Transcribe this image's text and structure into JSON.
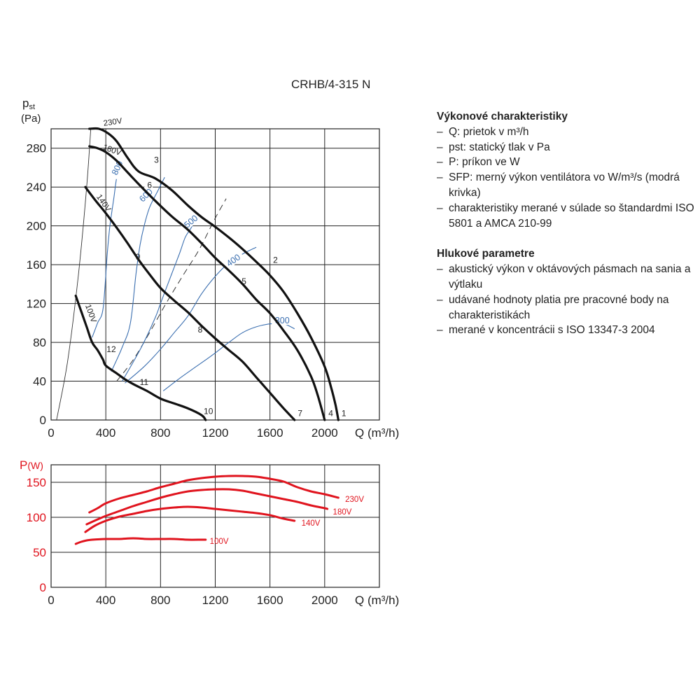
{
  "title": "CRHB/4-315 N",
  "notes": {
    "perf_heading": "Výkonové charakteristiky",
    "perf_items": [
      "Q: prietok v m³/h",
      "pst: statický tlak v Pa",
      "P: príkon ve W",
      "SFP: merný výkon ventilátora vo W/m³/s (modrá krivka)",
      "charakteristiky merané v súlade so štan­dardmi ISO 5801 a AMCA 210-99"
    ],
    "noise_heading": "Hlukové parametre",
    "noise_items": [
      "akustický výkon v oktávových pásmach na sania a výtlaku",
      "udávané hodnoty platia pre pracovné body na charakteristikách",
      "merané v koncentrácii s ISO 13347-3 2004"
    ]
  },
  "colors": {
    "pressure": "#111111",
    "sfp": "#3b6fb0",
    "power": "#e0141e",
    "grid": "#222222"
  },
  "chart_data": [
    {
      "type": "line",
      "ylabel": "pst",
      "yunit": "(Pa)",
      "xlabel": "Q (m³/h)",
      "xlim": [
        0,
        2400
      ],
      "ylim": [
        0,
        300
      ],
      "xticks": [
        0,
        400,
        800,
        1200,
        1600,
        2000
      ],
      "yticks": [
        0,
        40,
        80,
        120,
        160,
        200,
        240,
        280
      ],
      "grid": true,
      "series": [
        {
          "name": "230V",
          "points": [
            [
              280,
              300
            ],
            [
              350,
              300
            ],
            [
              420,
              295
            ],
            [
              480,
              287
            ],
            [
              560,
              270
            ],
            [
              640,
              256
            ],
            [
              760,
              249
            ],
            [
              880,
              237
            ],
            [
              1000,
              221
            ],
            [
              1100,
              209
            ],
            [
              1200,
              199
            ],
            [
              1300,
              188
            ],
            [
              1400,
              176
            ],
            [
              1500,
              163
            ],
            [
              1600,
              149
            ],
            [
              1700,
              132
            ],
            [
              1800,
              110
            ],
            [
              1900,
              85
            ],
            [
              2000,
              55
            ],
            [
              2050,
              32
            ],
            [
              2080,
              15
            ],
            [
              2100,
              0
            ]
          ]
        },
        {
          "name": "180V",
          "points": [
            [
              280,
              282
            ],
            [
              340,
              280
            ],
            [
              400,
              276
            ],
            [
              480,
              267
            ],
            [
              560,
              255
            ],
            [
              640,
              243
            ],
            [
              760,
              226
            ],
            [
              880,
              210
            ],
            [
              1000,
              196
            ],
            [
              1100,
              182
            ],
            [
              1200,
              167
            ],
            [
              1300,
              154
            ],
            [
              1400,
              140
            ],
            [
              1500,
              124
            ],
            [
              1600,
              110
            ],
            [
              1700,
              92
            ],
            [
              1800,
              72
            ],
            [
              1900,
              45
            ],
            [
              1950,
              25
            ],
            [
              2000,
              0
            ]
          ]
        },
        {
          "name": "140V",
          "points": [
            [
              250,
              240
            ],
            [
              320,
              227
            ],
            [
              400,
              213
            ],
            [
              480,
              198
            ],
            [
              560,
              182
            ],
            [
              640,
              165
            ],
            [
              720,
              150
            ],
            [
              800,
              136
            ],
            [
              900,
              123
            ],
            [
              1000,
              111
            ],
            [
              1100,
              97
            ],
            [
              1200,
              84
            ],
            [
              1300,
              72
            ],
            [
              1400,
              60
            ],
            [
              1500,
              44
            ],
            [
              1600,
              28
            ],
            [
              1700,
              12
            ],
            [
              1780,
              0
            ]
          ]
        },
        {
          "name": "100V",
          "points": [
            [
              180,
              128
            ],
            [
              220,
              112
            ],
            [
              260,
              96
            ],
            [
              300,
              80
            ],
            [
              340,
              72
            ],
            [
              380,
              62
            ],
            [
              400,
              56
            ],
            [
              480,
              48
            ],
            [
              540,
              42
            ],
            [
              600,
              37
            ],
            [
              700,
              30
            ],
            [
              800,
              22
            ],
            [
              900,
              17
            ],
            [
              1000,
              12
            ],
            [
              1100,
              5
            ],
            [
              1130,
              0
            ]
          ]
        }
      ],
      "dashed_line": [
        [
          480,
          40
        ],
        [
          600,
          62
        ],
        [
          720,
          90
        ],
        [
          840,
          120
        ],
        [
          960,
          148
        ],
        [
          1080,
          175
        ],
        [
          1200,
          208
        ],
        [
          1280,
          228
        ]
      ],
      "system_curve": [
        [
          40,
          0
        ],
        [
          120,
          60
        ],
        [
          200,
          150
        ],
        [
          260,
          240
        ],
        [
          290,
          300
        ]
      ],
      "sfp_curves": [
        {
          "name": "800",
          "points": [
            [
              300,
              85
            ],
            [
              340,
              100
            ],
            [
              380,
              115
            ],
            [
              410,
              170
            ],
            [
              430,
              200
            ],
            [
              460,
              230
            ],
            [
              480,
              250
            ],
            [
              510,
              263
            ],
            [
              540,
              268
            ]
          ]
        },
        {
          "name": "600",
          "points": [
            [
              440,
              50
            ],
            [
              520,
              75
            ],
            [
              580,
              100
            ],
            [
              620,
              150
            ],
            [
              650,
              180
            ],
            [
              680,
              200
            ],
            [
              720,
              219
            ],
            [
              780,
              236
            ],
            [
              830,
              250
            ]
          ]
        },
        {
          "name": "500",
          "points": [
            [
              520,
              40
            ],
            [
              660,
              75
            ],
            [
              760,
              105
            ],
            [
              800,
              120
            ],
            [
              880,
              150
            ],
            [
              940,
              172
            ],
            [
              980,
              188
            ],
            [
              1020,
              197
            ],
            [
              1060,
              207
            ]
          ]
        },
        {
          "name": "400",
          "points": [
            [
              540,
              38
            ],
            [
              680,
              55
            ],
            [
              800,
              73
            ],
            [
              900,
              90
            ],
            [
              1000,
              107
            ],
            [
              1100,
              130
            ],
            [
              1200,
              148
            ],
            [
              1300,
              162
            ],
            [
              1400,
              171
            ],
            [
              1500,
              178
            ]
          ]
        },
        {
          "name": "300",
          "points": [
            [
              820,
              30
            ],
            [
              940,
              43
            ],
            [
              1060,
              55
            ],
            [
              1180,
              67
            ],
            [
              1300,
              80
            ],
            [
              1400,
              90
            ],
            [
              1500,
              96
            ],
            [
              1600,
              99
            ],
            [
              1700,
              99
            ],
            [
              1780,
              94
            ]
          ]
        }
      ],
      "point_labels": [
        {
          "text": "1",
          "x": 2140,
          "y": 4
        },
        {
          "text": "2",
          "x": 1640,
          "y": 162
        },
        {
          "text": "3",
          "x": 770,
          "y": 265
        },
        {
          "text": "4",
          "x": 2045,
          "y": 4
        },
        {
          "text": "5",
          "x": 1410,
          "y": 140
        },
        {
          "text": "6",
          "x": 720,
          "y": 239
        },
        {
          "text": "7",
          "x": 1820,
          "y": 4
        },
        {
          "text": "8",
          "x": 1090,
          "y": 90
        },
        {
          "text": "9",
          "x": 635,
          "y": 165
        },
        {
          "text": "10",
          "x": 1150,
          "y": 6
        },
        {
          "text": "11",
          "x": 680,
          "y": 36
        },
        {
          "text": "12",
          "x": 440,
          "y": 70
        }
      ],
      "voltage_labels": [
        {
          "text": "230V",
          "x": 385,
          "y": 303,
          "angle": -8
        },
        {
          "text": "180V",
          "x": 375,
          "y": 279,
          "angle": 20
        },
        {
          "text": "140V",
          "x": 330,
          "y": 230,
          "angle": 55
        },
        {
          "text": "100V",
          "x": 250,
          "y": 118,
          "angle": 70
        }
      ]
    },
    {
      "type": "line",
      "ylabel": "P",
      "yunit": "(W)",
      "xlabel": "Q (m³/h)",
      "xlim": [
        0,
        2400
      ],
      "ylim": [
        0,
        175
      ],
      "xticks": [
        0,
        400,
        800,
        1200,
        1600,
        2000
      ],
      "yticks": [
        0,
        50,
        100,
        150
      ],
      "grid": true,
      "series": [
        {
          "name": "230V",
          "points": [
            [
              280,
              107
            ],
            [
              340,
              113
            ],
            [
              400,
              120
            ],
            [
              500,
              127
            ],
            [
              600,
              132
            ],
            [
              700,
              137
            ],
            [
              800,
              143
            ],
            [
              900,
              148
            ],
            [
              1000,
              153
            ],
            [
              1100,
              156
            ],
            [
              1200,
              158
            ],
            [
              1300,
              159
            ],
            [
              1400,
              159
            ],
            [
              1500,
              158
            ],
            [
              1600,
              155
            ],
            [
              1700,
              151
            ],
            [
              1800,
              143
            ],
            [
              1900,
              137
            ],
            [
              2000,
              133
            ],
            [
              2100,
              128
            ]
          ]
        },
        {
          "name": "180V",
          "points": [
            [
              260,
              90
            ],
            [
              340,
              97
            ],
            [
              400,
              102
            ],
            [
              500,
              109
            ],
            [
              600,
              116
            ],
            [
              700,
              122
            ],
            [
              800,
              128
            ],
            [
              900,
              133
            ],
            [
              1000,
              137
            ],
            [
              1100,
              139
            ],
            [
              1200,
              140
            ],
            [
              1300,
              140
            ],
            [
              1400,
              138
            ],
            [
              1500,
              134
            ],
            [
              1600,
              130
            ],
            [
              1700,
              126
            ],
            [
              1800,
              122
            ],
            [
              1900,
              117
            ],
            [
              2000,
              113
            ],
            [
              2020,
              112
            ]
          ]
        },
        {
          "name": "140V",
          "points": [
            [
              250,
              79
            ],
            [
              320,
              88
            ],
            [
              400,
              95
            ],
            [
              500,
              101
            ],
            [
              600,
              105
            ],
            [
              700,
              109
            ],
            [
              800,
              112
            ],
            [
              900,
              114
            ],
            [
              1000,
              115
            ],
            [
              1100,
              114
            ],
            [
              1200,
              112
            ],
            [
              1300,
              110
            ],
            [
              1400,
              108
            ],
            [
              1500,
              106
            ],
            [
              1600,
              103
            ],
            [
              1700,
              98
            ],
            [
              1780,
              95
            ]
          ]
        },
        {
          "name": "100V",
          "points": [
            [
              180,
              62
            ],
            [
              220,
              65
            ],
            [
              260,
              67
            ],
            [
              300,
              68
            ],
            [
              400,
              69
            ],
            [
              500,
              69
            ],
            [
              600,
              70
            ],
            [
              700,
              69
            ],
            [
              800,
              69
            ],
            [
              900,
              69
            ],
            [
              1000,
              68
            ],
            [
              1100,
              68
            ],
            [
              1130,
              68
            ]
          ]
        }
      ],
      "voltage_labels": [
        {
          "text": "230V",
          "x": 2150,
          "y": 126
        },
        {
          "text": "180V",
          "x": 2060,
          "y": 108
        },
        {
          "text": "140V",
          "x": 1830,
          "y": 92
        },
        {
          "text": "100V",
          "x": 1160,
          "y": 66
        }
      ]
    }
  ]
}
